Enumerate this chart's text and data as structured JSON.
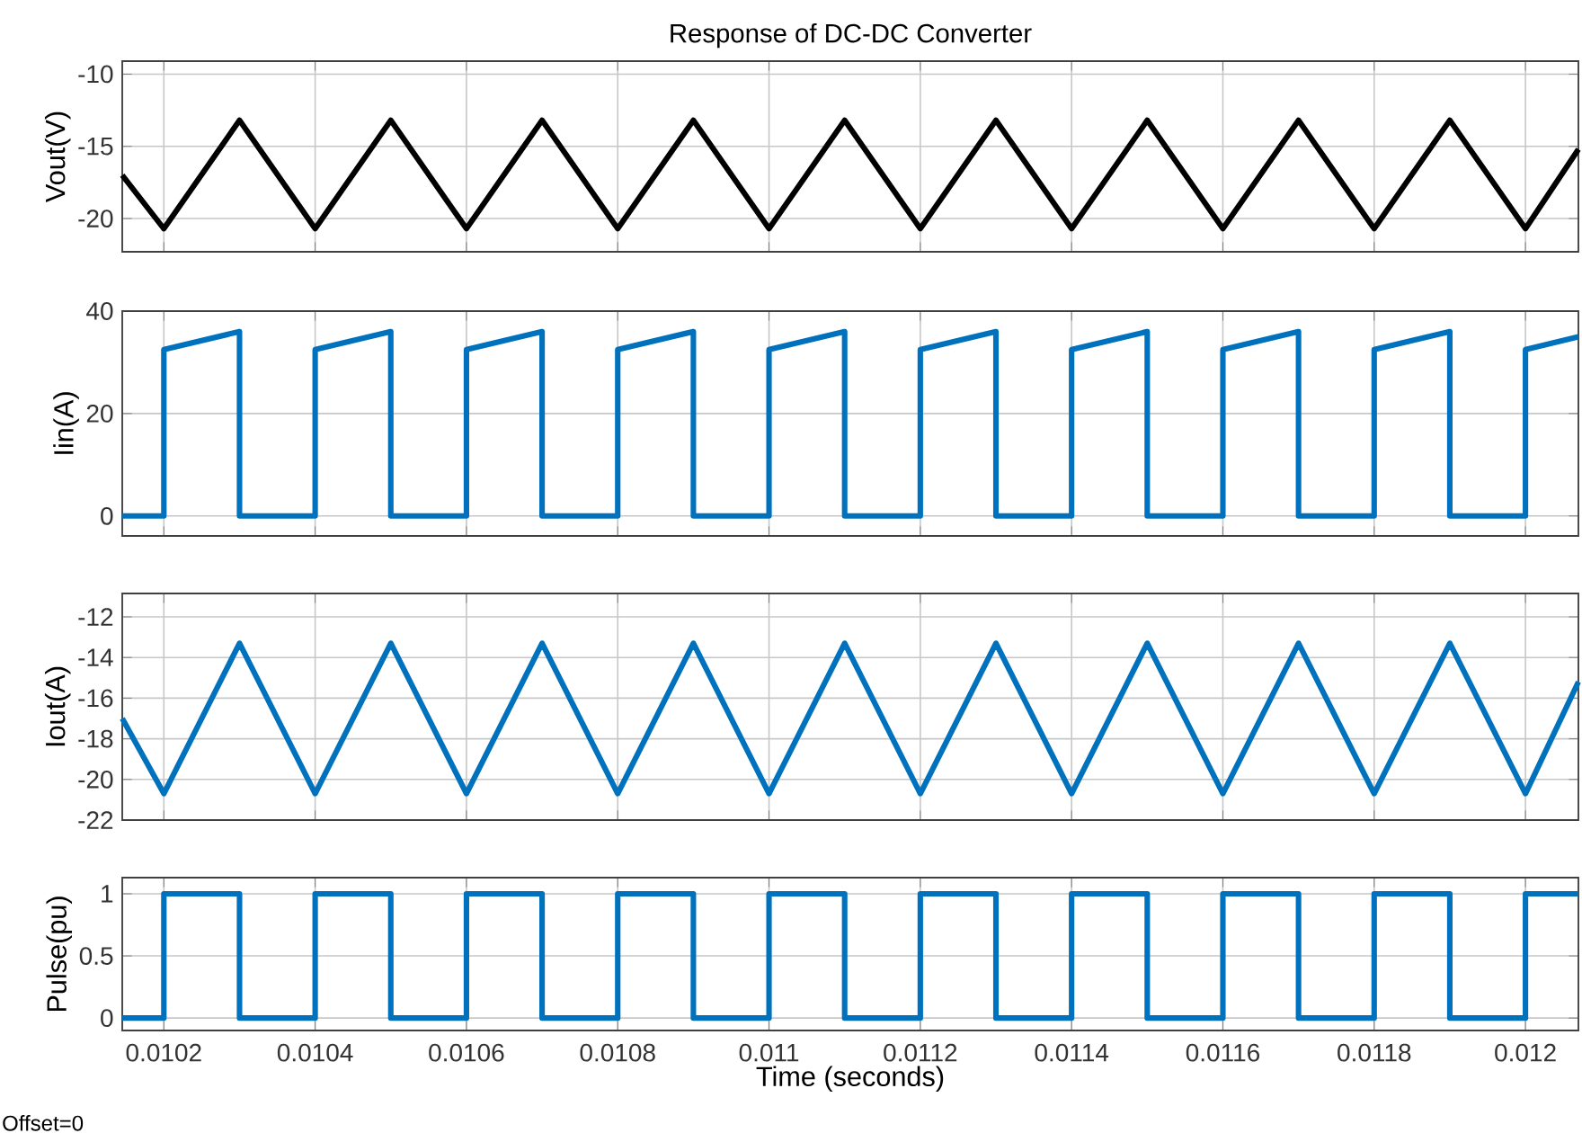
{
  "chart_data": [
    {
      "type": "line",
      "title": "Response of DC-DC Converter",
      "ylabel": "Vout(V)",
      "xlim": [
        0.010145,
        0.01207
      ],
      "ylim": [
        -22.3,
        -9.1
      ],
      "yticks": [
        -20,
        -15,
        -10
      ],
      "xticks": [
        0.0102,
        0.0104,
        0.0106,
        0.0108,
        0.011,
        0.0112,
        0.0114,
        0.0116,
        0.0118,
        0.012
      ],
      "grid": true,
      "tick_labels": "y",
      "series": [
        {
          "color": "#000000",
          "x": [
            0.010145,
            0.0102,
            0.0103,
            0.0104,
            0.0105,
            0.0106,
            0.0107,
            0.0108,
            0.0109,
            0.011,
            0.0111,
            0.0112,
            0.0113,
            0.0114,
            0.0115,
            0.0116,
            0.0117,
            0.0118,
            0.0119,
            0.012,
            0.01207
          ],
          "values": [
            -17,
            -20.7,
            -13.2,
            -20.7,
            -13.2,
            -20.7,
            -13.2,
            -20.7,
            -13.2,
            -20.7,
            -13.2,
            -20.7,
            -13.2,
            -20.7,
            -13.2,
            -20.7,
            -13.2,
            -20.7,
            -13.2,
            -20.7,
            -15.2
          ]
        }
      ]
    },
    {
      "type": "line",
      "ylabel": "Iin(A)",
      "xlim": [
        0.010145,
        0.01207
      ],
      "ylim": [
        -3.9,
        40
      ],
      "yticks": [
        0,
        20,
        40
      ],
      "xticks": [
        0.0102,
        0.0104,
        0.0106,
        0.0108,
        0.011,
        0.0112,
        0.0114,
        0.0116,
        0.0118,
        0.012
      ],
      "grid": true,
      "tick_labels": "y",
      "series": [
        {
          "color": "#0072bd",
          "x": [
            0.010145,
            0.0102,
            0.0102,
            0.0103,
            0.0103,
            0.0104,
            0.0104,
            0.0105,
            0.0105,
            0.0106,
            0.0106,
            0.0107,
            0.0107,
            0.0108,
            0.0108,
            0.0109,
            0.0109,
            0.011,
            0.011,
            0.0111,
            0.0111,
            0.0112,
            0.0112,
            0.0113,
            0.0113,
            0.0114,
            0.0114,
            0.0115,
            0.0115,
            0.0116,
            0.0116,
            0.0117,
            0.0117,
            0.0118,
            0.0118,
            0.0119,
            0.0119,
            0.012,
            0.012,
            0.01207
          ],
          "values": [
            0,
            0,
            32.5,
            36,
            0,
            0,
            32.5,
            36,
            0,
            0,
            32.5,
            36,
            0,
            0,
            32.5,
            36,
            0,
            0,
            32.5,
            36,
            0,
            0,
            32.5,
            36,
            0,
            0,
            32.5,
            36,
            0,
            0,
            32.5,
            36,
            0,
            0,
            32.5,
            36,
            0,
            0,
            32.5,
            35
          ]
        }
      ]
    },
    {
      "type": "line",
      "ylabel": "Iout(A)",
      "xlim": [
        0.010145,
        0.01207
      ],
      "ylim": [
        -22,
        -10.85
      ],
      "yticks": [
        -22,
        -20,
        -18,
        -16,
        -14,
        -12
      ],
      "xticks": [
        0.0102,
        0.0104,
        0.0106,
        0.0108,
        0.011,
        0.0112,
        0.0114,
        0.0116,
        0.0118,
        0.012
      ],
      "grid": true,
      "tick_labels": "y",
      "series": [
        {
          "color": "#0072bd",
          "x": [
            0.010145,
            0.0102,
            0.0103,
            0.0104,
            0.0105,
            0.0106,
            0.0107,
            0.0108,
            0.0109,
            0.011,
            0.0111,
            0.0112,
            0.0113,
            0.0114,
            0.0115,
            0.0116,
            0.0117,
            0.0118,
            0.0119,
            0.012,
            0.01207
          ],
          "values": [
            -17,
            -20.7,
            -13.3,
            -20.7,
            -13.3,
            -20.7,
            -13.3,
            -20.7,
            -13.3,
            -20.7,
            -13.3,
            -20.7,
            -13.3,
            -20.7,
            -13.3,
            -20.7,
            -13.3,
            -20.7,
            -13.3,
            -20.7,
            -15.2
          ]
        }
      ]
    },
    {
      "type": "line",
      "ylabel": "Pulse(pu)",
      "xlabel": "Time (seconds)",
      "annotations": [
        "Offset=0"
      ],
      "xlim": [
        0.010145,
        0.01207
      ],
      "ylim": [
        -0.1,
        1.13
      ],
      "yticks": [
        0,
        0.5,
        1
      ],
      "xticks": [
        0.0102,
        0.0104,
        0.0106,
        0.0108,
        0.011,
        0.0112,
        0.0114,
        0.0116,
        0.0118,
        0.012
      ],
      "grid": true,
      "series": [
        {
          "color": "#0072bd",
          "x": [
            0.010145,
            0.0102,
            0.0102,
            0.0103,
            0.0103,
            0.0104,
            0.0104,
            0.0105,
            0.0105,
            0.0106,
            0.0106,
            0.0107,
            0.0107,
            0.0108,
            0.0108,
            0.0109,
            0.0109,
            0.011,
            0.011,
            0.0111,
            0.0111,
            0.0112,
            0.0112,
            0.0113,
            0.0113,
            0.0114,
            0.0114,
            0.0115,
            0.0115,
            0.0116,
            0.0116,
            0.0117,
            0.0117,
            0.0118,
            0.0118,
            0.0119,
            0.0119,
            0.012,
            0.012,
            0.01207
          ],
          "values": [
            0,
            0,
            1,
            1,
            0,
            0,
            1,
            1,
            0,
            0,
            1,
            1,
            0,
            0,
            1,
            1,
            0,
            0,
            1,
            1,
            0,
            0,
            1,
            1,
            0,
            0,
            1,
            1,
            0,
            0,
            1,
            1,
            0,
            0,
            1,
            1,
            0,
            0,
            1,
            1
          ]
        }
      ]
    }
  ]
}
